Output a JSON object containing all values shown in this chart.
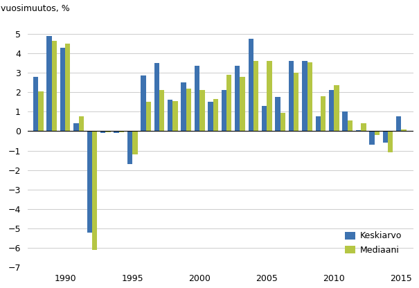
{
  "years": [
    1988,
    1989,
    1990,
    1991,
    1992,
    1993,
    1994,
    1995,
    1996,
    1997,
    1998,
    1999,
    2000,
    2001,
    2002,
    2003,
    2004,
    2005,
    2006,
    2007,
    2008,
    2009,
    2010,
    2011,
    2012,
    2013,
    2014,
    2015
  ],
  "keskiarvo": [
    2.8,
    4.9,
    4.3,
    0.4,
    -5.2,
    -0.1,
    -0.1,
    -1.7,
    2.85,
    3.5,
    1.6,
    2.5,
    3.35,
    1.5,
    2.1,
    3.35,
    4.75,
    1.3,
    1.75,
    3.6,
    3.6,
    0.75,
    2.1,
    1.0,
    0.05,
    -0.7,
    -0.6,
    0.75
  ],
  "mediaani": [
    2.05,
    4.65,
    4.5,
    0.75,
    -6.1,
    -0.05,
    -0.05,
    -1.2,
    1.5,
    2.1,
    1.55,
    2.2,
    2.1,
    1.65,
    2.9,
    2.8,
    3.6,
    3.6,
    0.95,
    3.0,
    3.55,
    1.8,
    2.35,
    0.55,
    0.4,
    -0.2,
    -1.1,
    0.1
  ],
  "bar_color_blue": "#3d72b0",
  "bar_color_green": "#b5c644",
  "ylabel": "vuosimuutos, %",
  "ylim": [
    -7,
    5.8
  ],
  "yticks": [
    -7,
    -6,
    -5,
    -4,
    -3,
    -2,
    -1,
    0,
    1,
    2,
    3,
    4,
    5
  ],
  "xlim": [
    1987.2,
    2015.9
  ],
  "xtick_years": [
    1990,
    1995,
    2000,
    2005,
    2010,
    2015
  ],
  "legend_labels": [
    "Keskiarvo",
    "Mediaani"
  ],
  "background_color": "#ffffff",
  "grid_color": "#cccccc"
}
